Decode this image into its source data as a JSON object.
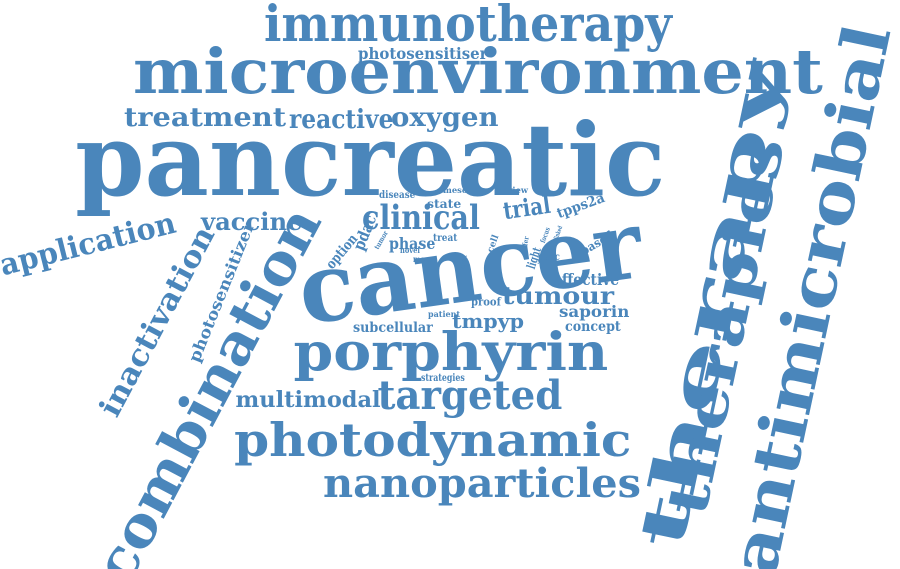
{
  "colors": {
    "word": "#4A86BB",
    "background": "#FFFFFF"
  },
  "words": [
    {
      "id": "pancreatic",
      "text": "pancreatic"
    },
    {
      "id": "cancer",
      "text": "cancer"
    },
    {
      "id": "microenvironment",
      "text": "microenvironment"
    },
    {
      "id": "immunotherapy",
      "text": "immunotherapy"
    },
    {
      "id": "therapy",
      "text": "therapy"
    },
    {
      "id": "therapies",
      "text": "therapies"
    },
    {
      "id": "antimicrobial",
      "text": "antimicrobial"
    },
    {
      "id": "combination",
      "text": "combination"
    },
    {
      "id": "porphyrin",
      "text": "porphyrin"
    },
    {
      "id": "photodynamic",
      "text": "photodynamic"
    },
    {
      "id": "nanoparticles",
      "text": "nanoparticles"
    },
    {
      "id": "targeted",
      "text": "targeted"
    },
    {
      "id": "multimodal",
      "text": "multimodal"
    },
    {
      "id": "inactivation",
      "text": "inactivation"
    },
    {
      "id": "application",
      "text": "application"
    },
    {
      "id": "vaccine",
      "text": "vaccine"
    },
    {
      "id": "clinical",
      "text": "clinical"
    },
    {
      "id": "trial",
      "text": "trial"
    },
    {
      "id": "treatment",
      "text": "treatment"
    },
    {
      "id": "reactive",
      "text": "reactive"
    },
    {
      "id": "oxygen",
      "text": "oxygen"
    },
    {
      "id": "photosensitiser",
      "text": "photosensitiser"
    },
    {
      "id": "photosensitizer",
      "text": "photosensitizer"
    },
    {
      "id": "tumour",
      "text": "tumour"
    },
    {
      "id": "tmpyp",
      "text": "tmpyp"
    },
    {
      "id": "effective",
      "text": "effective"
    },
    {
      "id": "saporin",
      "text": "saporin"
    },
    {
      "id": "concept",
      "text": "concept"
    },
    {
      "id": "subcellular",
      "text": "subcellular"
    },
    {
      "id": "strategies",
      "text": "strategies"
    },
    {
      "id": "tpps2a",
      "text": "tpps2a"
    },
    {
      "id": "phase",
      "text": "phase"
    },
    {
      "id": "pdac",
      "text": "pdac"
    },
    {
      "id": "option",
      "text": "option"
    },
    {
      "id": "state",
      "text": "state"
    },
    {
      "id": "disease",
      "text": "disease"
    },
    {
      "id": "meso",
      "text": "meso"
    },
    {
      "id": "review",
      "text": "review"
    },
    {
      "id": "treat",
      "text": "treat"
    },
    {
      "id": "cell",
      "text": "cell"
    },
    {
      "id": "based",
      "text": "based"
    },
    {
      "id": "light",
      "text": "light"
    },
    {
      "id": "panc",
      "text": "panc"
    },
    {
      "id": "proof",
      "text": "proof"
    },
    {
      "id": "patient",
      "text": "patient"
    },
    {
      "id": "novel",
      "text": "novel"
    },
    {
      "id": "more",
      "text": "more"
    },
    {
      "id": "offer",
      "text": "offer"
    },
    {
      "id": "tumor",
      "text": "tumor"
    },
    {
      "id": "effect",
      "text": "effect"
    },
    {
      "id": "focus",
      "text": "focus"
    },
    {
      "id": "linked",
      "text": "linked"
    }
  ]
}
